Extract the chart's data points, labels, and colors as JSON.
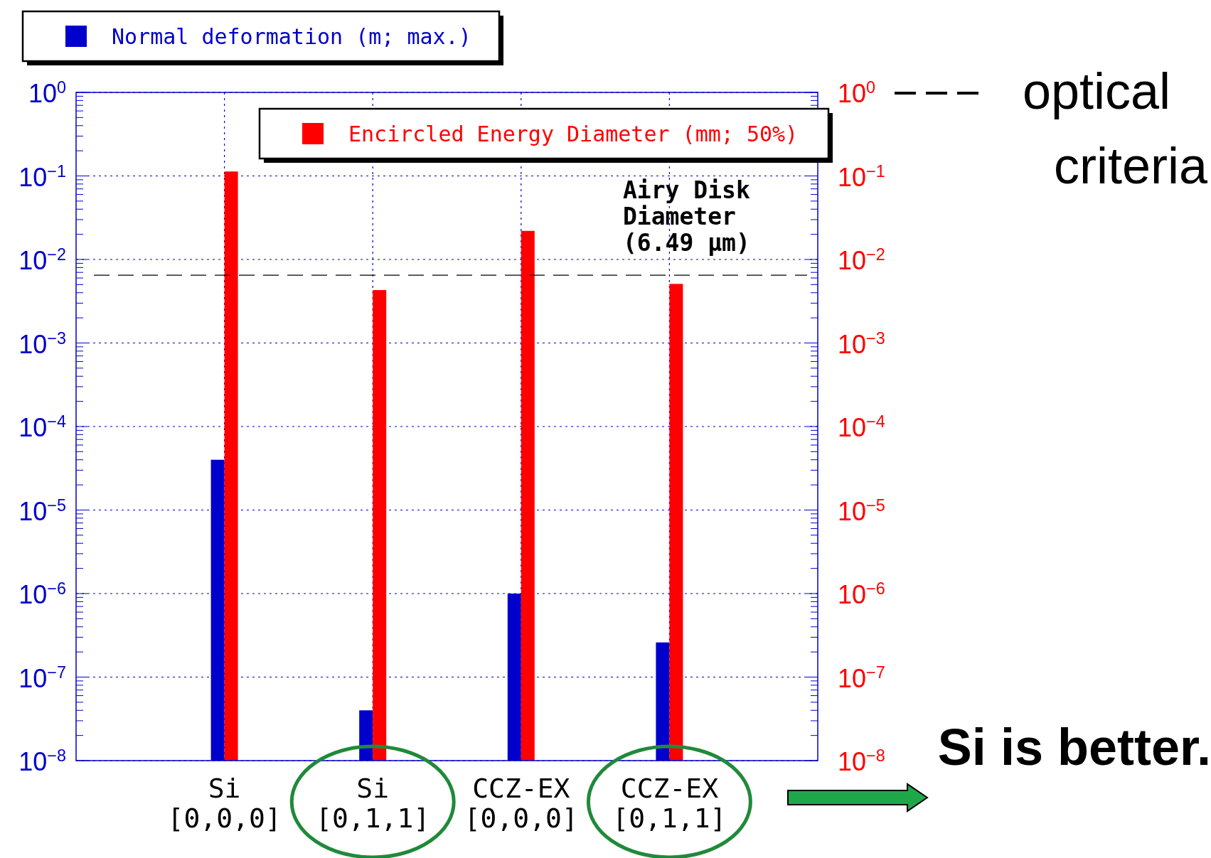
{
  "chart_data": {
    "type": "bar",
    "categories": [
      "Si\n[0,0,0]",
      "Si\n[0,1,1]",
      "CCZ-EX\n[0,0,0]",
      "CCZ-EX\n[0,1,1]"
    ],
    "series": [
      {
        "name": "Normal deformation (m; max.)",
        "color": "#0000cc",
        "values": [
          4e-05,
          4e-08,
          1e-06,
          2.6e-07
        ]
      },
      {
        "name": "Encircled Energy Diameter (mm; 50%)",
        "color": "#ff0000",
        "values": [
          0.113,
          0.0043,
          0.022,
          0.0051
        ]
      }
    ],
    "log": "y",
    "ylim": [
      1e-08,
      1
    ],
    "yticks": [
      {
        "value": 1e-08,
        "label": "10$^{−8}$"
      },
      {
        "value": 1e-07,
        "label": "10$^{−7}$"
      },
      {
        "value": 1e-06,
        "label": "10$^{−6}$"
      },
      {
        "value": 1e-05,
        "label": "10$^{−5}$"
      },
      {
        "value": 0.0001,
        "label": "10$^{−4}$"
      },
      {
        "value": 0.001,
        "label": "10$^{−3}$"
      },
      {
        "value": 0.01,
        "label": "10$^{−2}$"
      },
      {
        "value": 0.1,
        "label": "10$^{−1}$"
      },
      {
        "value": 1,
        "label": "10$^{0}$"
      }
    ],
    "grid": true,
    "legend": "top",
    "ref_lines": [
      {
        "axis": "y",
        "value": 0.00649,
        "label": "Airy Disk\nDiameter\n(6.49 μm)",
        "color": "#000000",
        "line_style": "dashed"
      }
    ],
    "annotations": [
      "optical\ncriteria",
      "Si  is better."
    ]
  }
}
